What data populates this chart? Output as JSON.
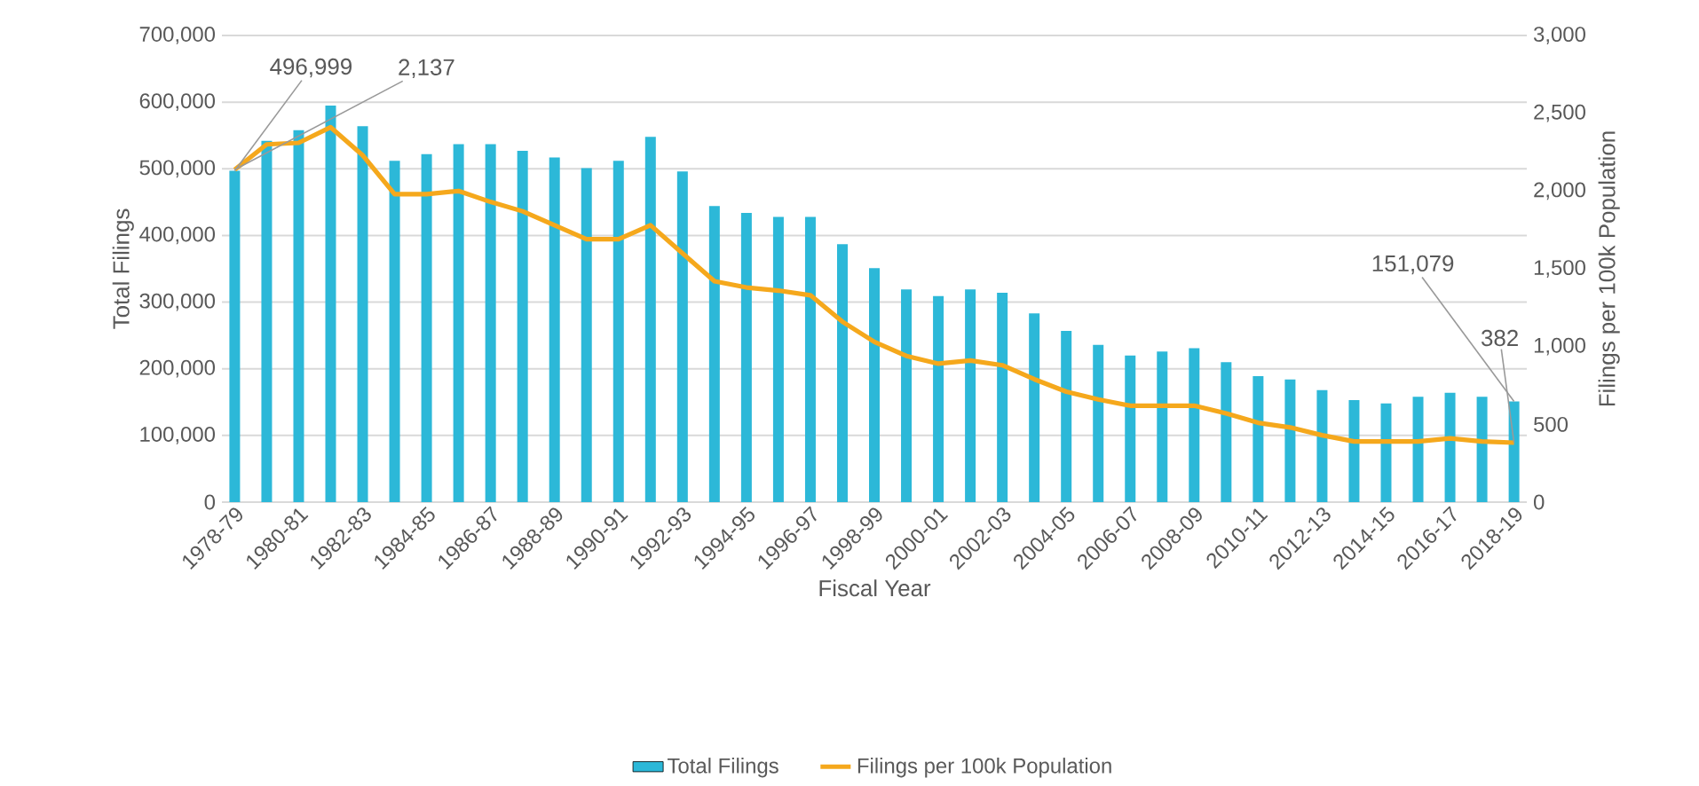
{
  "chart_data": {
    "type": "bar",
    "xlabel": "Fiscal Year",
    "ylabel": "Total Filings",
    "y2label": "Filings per 100k Population",
    "categories": [
      "1978-79",
      null,
      "1980-81",
      null,
      "1982-83",
      null,
      "1984-85",
      null,
      "1986-87",
      null,
      "1988-89",
      null,
      "1990-91",
      null,
      "1992-93",
      null,
      "1994-95",
      null,
      "1996-97",
      null,
      "1998-99",
      null,
      "2000-01",
      null,
      "2002-03",
      null,
      "2004-05",
      null,
      "2006-07",
      null,
      "2008-09",
      null,
      "2010-11",
      null,
      "2012-13",
      null,
      "2014-15",
      null,
      "2016-17",
      null,
      "2018-19"
    ],
    "series": [
      {
        "name": "Total Filings",
        "color": "#2cb8d8",
        "values": [
          496999,
          542000,
          558000,
          595000,
          564000,
          512000,
          522000,
          537000,
          537000,
          527000,
          517000,
          501000,
          512000,
          548000,
          496000,
          444000,
          434000,
          428000,
          428000,
          387000,
          351000,
          319000,
          309000,
          319000,
          314000,
          283000,
          257000,
          236000,
          220000,
          226000,
          231000,
          210000,
          189000,
          184000,
          168000,
          153000,
          148000,
          158000,
          164000,
          158000,
          151079
        ],
        "value_labels": [
          "496,999",
          null,
          null,
          null,
          null,
          null,
          null,
          null,
          null,
          null,
          null,
          null,
          null,
          null,
          null,
          null,
          null,
          null,
          null,
          null,
          null,
          null,
          null,
          null,
          null,
          null,
          null,
          null,
          null,
          null,
          null,
          null,
          null,
          null,
          null,
          null,
          null,
          null,
          null,
          null,
          "151,079"
        ]
      },
      {
        "name": "Filings per 100k Population",
        "type": "line",
        "axis": "y2",
        "color": "#f5a81c",
        "values": [
          2137,
          2300,
          2310,
          2410,
          2230,
          1980,
          1980,
          2000,
          1930,
          1870,
          1780,
          1690,
          1690,
          1780,
          1600,
          1420,
          1380,
          1360,
          1330,
          1160,
          1030,
          940,
          890,
          910,
          880,
          790,
          710,
          660,
          620,
          620,
          620,
          570,
          510,
          480,
          430,
          390,
          390,
          390,
          410,
          390,
          382
        ],
        "value_labels": [
          "2,137",
          null,
          null,
          null,
          null,
          null,
          null,
          null,
          null,
          null,
          null,
          null,
          null,
          null,
          null,
          null,
          null,
          null,
          null,
          null,
          null,
          null,
          null,
          null,
          null,
          null,
          null,
          null,
          null,
          null,
          null,
          null,
          null,
          null,
          null,
          null,
          null,
          null,
          null,
          null,
          "382"
        ]
      }
    ],
    "ylim": [
      0,
      700000
    ],
    "yticks": [
      0,
      {
        "value": 100000,
        "label": "100,000"
      },
      {
        "value": 200000,
        "label": "200,000"
      },
      {
        "value": 300000,
        "label": "300,000"
      },
      {
        "value": 400000,
        "label": "400,000"
      },
      {
        "value": 500000,
        "label": "500,000"
      },
      {
        "value": 600000,
        "label": "600,000"
      },
      {
        "value": 700000,
        "label": "700,000"
      }
    ],
    "y2lim": [
      0,
      3000
    ],
    "y2ticks": [
      0,
      500,
      {
        "value": 1000,
        "label": "1,000"
      },
      {
        "value": 1500,
        "label": "1,500"
      },
      {
        "value": 2000,
        "label": "2,000"
      },
      {
        "value": 2500,
        "label": "2,500"
      },
      {
        "value": 3000,
        "label": "3,000"
      }
    ],
    "grid": "y",
    "legend": "bottom"
  }
}
